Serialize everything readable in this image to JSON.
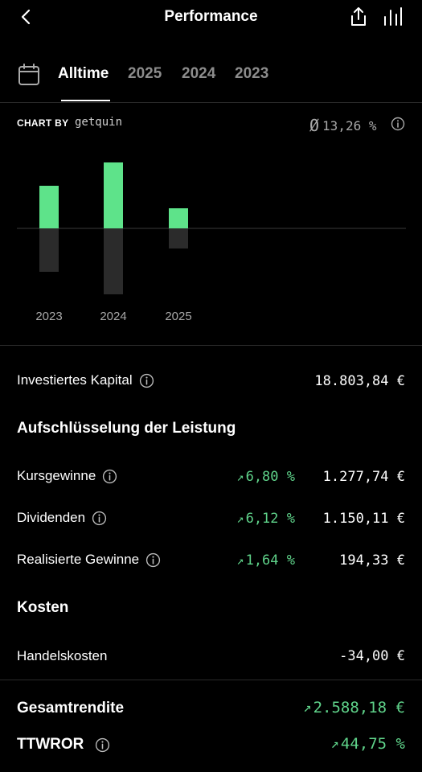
{
  "header": {
    "title": "Performance"
  },
  "tabs": {
    "items": [
      {
        "label": "Alltime",
        "active": true
      },
      {
        "label": "2025",
        "active": false
      },
      {
        "label": "2024",
        "active": false
      },
      {
        "label": "2023",
        "active": false
      }
    ]
  },
  "chart_header": {
    "chart_by": "CHART BY",
    "brand": "getquin",
    "avg_symbol": "Ø",
    "avg_value": "13,26 %"
  },
  "chart_data": {
    "type": "bar",
    "categories": [
      "2023",
      "2024",
      "2025"
    ],
    "series": [
      {
        "values": [
          53,
          82,
          25
        ],
        "color": "#5ee38a"
      },
      {
        "values": [
          -54,
          -82,
          -25
        ],
        "color": "#2b2b2b"
      }
    ]
  },
  "capital": {
    "label": "Investiertes Kapital",
    "value": "18.803,84  €"
  },
  "breakdown": {
    "title": "Aufschlüsselung der Leistung",
    "rows": [
      {
        "label": "Kursgewinne",
        "pct": "6,80  %",
        "value": "1.277,74  €"
      },
      {
        "label": "Dividenden",
        "pct": "6,12  %",
        "value": "1.150,11  €"
      },
      {
        "label": "Realisierte Gewinne",
        "pct": "1,64  %",
        "value": "194,33  €"
      }
    ]
  },
  "costs": {
    "title": "Kosten",
    "rows": [
      {
        "label": "Handelskosten",
        "value": "-34,00  €"
      }
    ]
  },
  "totals": {
    "total_return_label": "Gesamtrendite",
    "total_return_value": "2.588,18  €",
    "ttwror_label": "TTWROR",
    "ttwror_value": "44,75  %"
  },
  "colors": {
    "accent_green": "#5fd38a",
    "bar_green": "#5ee38a",
    "bar_dark": "#2b2b2b",
    "muted": "#8c8c8c"
  }
}
